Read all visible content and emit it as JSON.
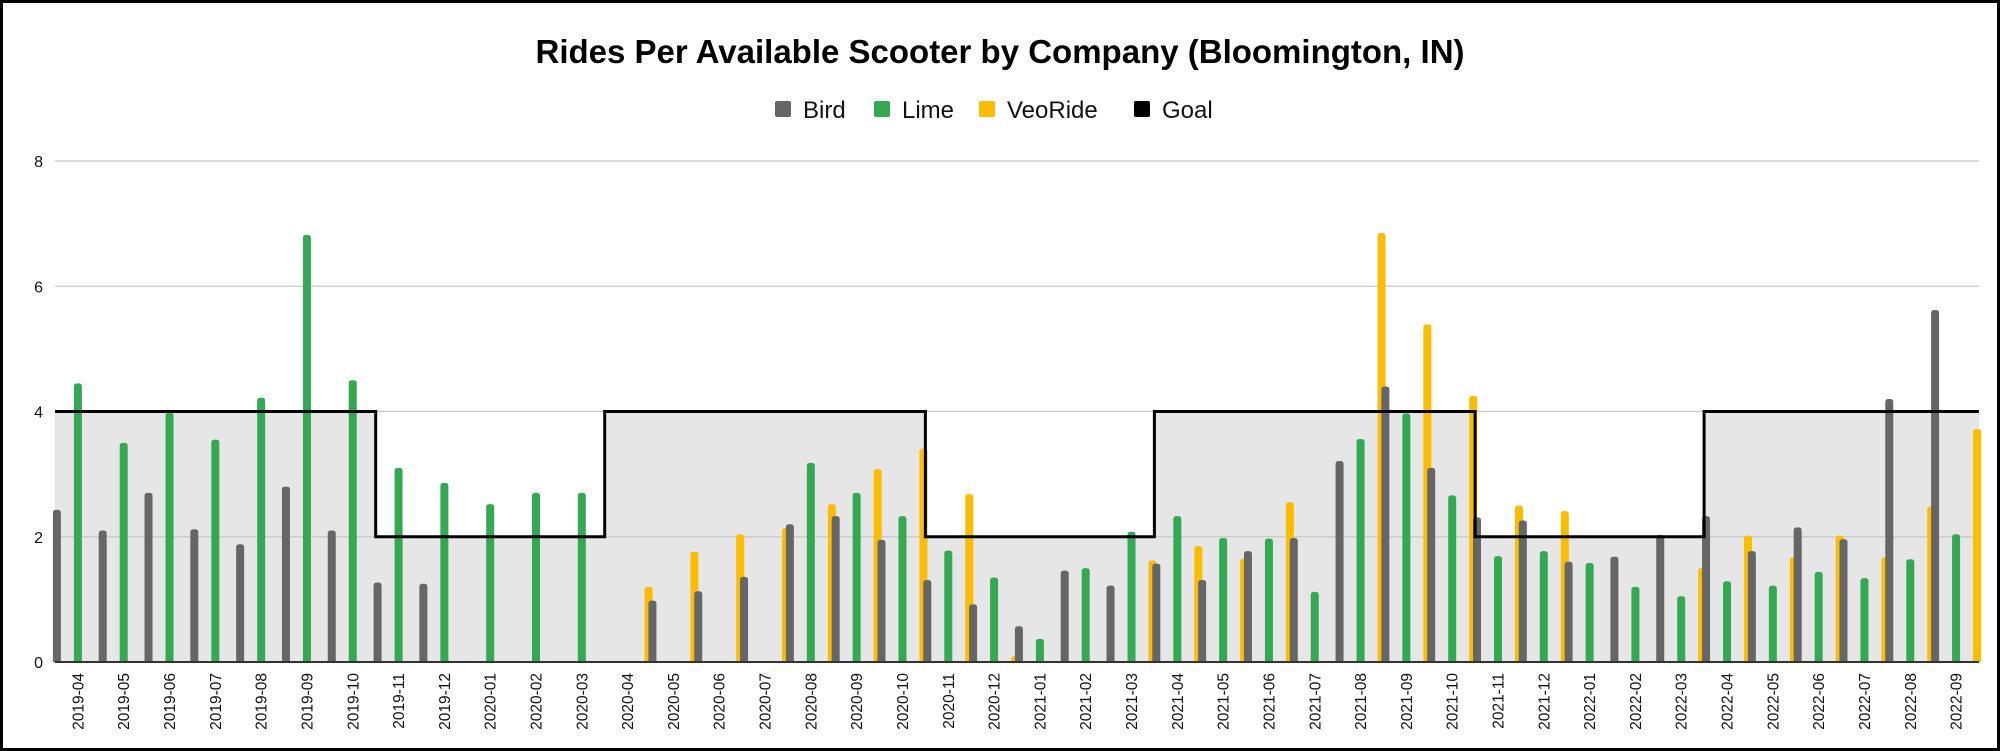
{
  "chart_data": {
    "type": "bar",
    "title": "Rides Per Available Scooter by Company (Bloomington, IN)",
    "legend_position": "top",
    "grid": true,
    "ylim": [
      0,
      8
    ],
    "yticks": [
      0,
      2,
      4,
      6,
      8
    ],
    "categories": [
      "2019-04",
      "2019-05",
      "2019-06",
      "2019-07",
      "2019-08",
      "2019-09",
      "2019-10",
      "2019-11",
      "2019-12",
      "2020-01",
      "2020-02",
      "2020-03",
      "2020-04",
      "2020-05",
      "2020-06",
      "2020-07",
      "2020-08",
      "2020-09",
      "2020-10",
      "2020-11",
      "2020-12",
      "2021-01",
      "2021-02",
      "2021-03",
      "2021-04",
      "2021-05",
      "2021-06",
      "2021-07",
      "2021-08",
      "2021-09",
      "2021-10",
      "2021-11",
      "2021-12",
      "2022-01",
      "2022-02",
      "2022-03",
      "2022-04",
      "2022-05",
      "2022-06",
      "2022-07",
      "2022-08",
      "2022-09"
    ],
    "series": [
      {
        "name": "Bird",
        "color": "#666666",
        "values": [
          2.43,
          2.1,
          2.7,
          2.12,
          1.88,
          2.8,
          2.1,
          1.27,
          1.25,
          null,
          null,
          null,
          null,
          0.98,
          1.13,
          1.36,
          2.2,
          2.33,
          1.95,
          1.31,
          0.92,
          0.57,
          1.46,
          1.22,
          1.57,
          1.31,
          1.77,
          1.98,
          3.21,
          4.4,
          3.1,
          2.31,
          2.26,
          1.6,
          1.68,
          2.03,
          2.33,
          1.77,
          2.15,
          1.96,
          4.2,
          5.62
        ]
      },
      {
        "name": "Lime",
        "color": "#34a853",
        "values": [
          4.45,
          3.5,
          3.98,
          3.55,
          4.22,
          6.82,
          4.5,
          3.1,
          2.86,
          2.52,
          2.7,
          2.7,
          null,
          null,
          null,
          null,
          3.18,
          2.7,
          2.33,
          1.78,
          1.35,
          0.37,
          1.5,
          2.08,
          2.33,
          1.98,
          1.97,
          1.12,
          3.56,
          3.97,
          2.66,
          1.69,
          1.77,
          1.58,
          1.2,
          1.05,
          1.29,
          1.22,
          1.44,
          1.34,
          1.64,
          2.04
        ]
      },
      {
        "name": "VeoRide",
        "color": "#fbbc04",
        "values": [
          null,
          null,
          null,
          null,
          null,
          null,
          null,
          null,
          null,
          null,
          null,
          null,
          1.2,
          1.76,
          2.04,
          2.14,
          2.52,
          3.08,
          3.41,
          2.68,
          0.09,
          null,
          null,
          1.62,
          1.85,
          1.65,
          2.55,
          null,
          6.85,
          5.39,
          4.25,
          2.5,
          2.41,
          null,
          null,
          1.5,
          2.02,
          1.67,
          2.02,
          1.67,
          2.48,
          3.72
        ]
      },
      {
        "name": "Goal",
        "color": "#000000",
        "values": [
          4,
          4,
          4,
          4,
          4,
          4,
          4,
          2,
          2,
          2,
          2,
          2,
          4,
          4,
          4,
          4,
          4,
          4,
          4,
          2,
          2,
          2,
          2,
          2,
          4,
          4,
          4,
          4,
          4,
          4,
          4,
          2,
          2,
          2,
          2,
          2,
          4,
          4,
          4,
          4,
          4,
          4
        ]
      }
    ]
  }
}
